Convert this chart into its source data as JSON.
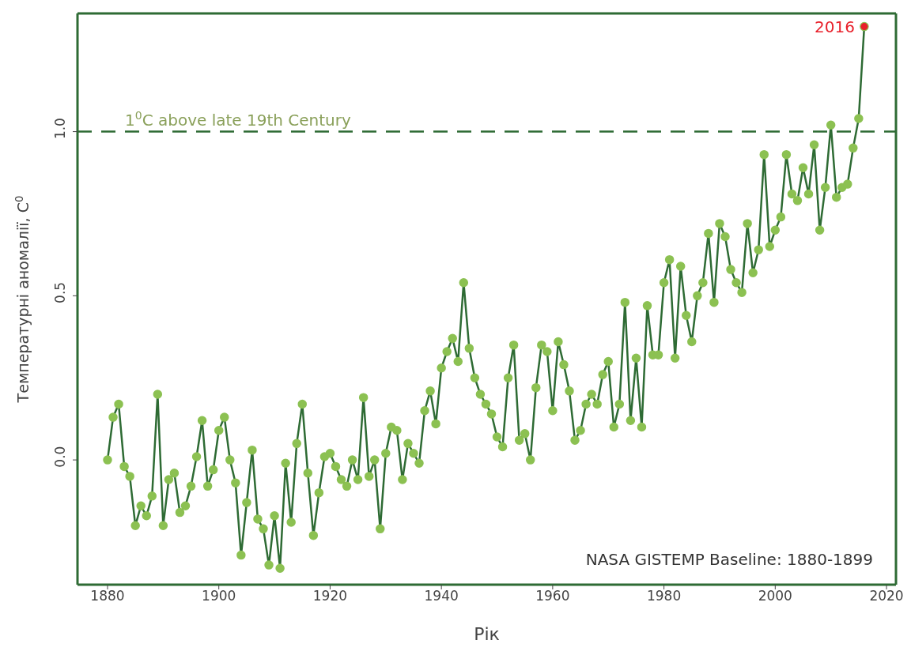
{
  "chart_data": {
    "type": "line",
    "xlabel": "Рік",
    "ylabel": "Температурні аномалії, C$^{0}$",
    "xlim": [
      1874.6,
      2021.7
    ],
    "xticks": [
      1880,
      1900,
      1920,
      1940,
      1960,
      1980,
      2000,
      2020
    ],
    "ylim": [
      -0.38,
      1.36
    ],
    "yticks": [
      {
        "value": 0,
        "label": "0.0"
      },
      {
        "value": 0.5,
        "label": "0.5"
      },
      {
        "value": 1,
        "label": "1.0"
      }
    ],
    "legend": false,
    "marker": "circle",
    "line_style": "solid",
    "ref_lines": [
      {
        "axis": "y",
        "value": 1,
        "label": "1$^{0}$C above late 19th Century",
        "color": "#2e6b34",
        "line_style": "dashed"
      }
    ],
    "annotations": [
      {
        "text": "2016",
        "x": 2016,
        "y": 1.32
      },
      "NASA GISTEMP Baseline: 1880-1899"
    ],
    "series": [
      {
        "color": "#2e6b34",
        "x": [
          1880,
          1881,
          1882,
          1883,
          1884,
          1885,
          1886,
          1887,
          1888,
          1889,
          1890,
          1891,
          1892,
          1893,
          1894,
          1895,
          1896,
          1897,
          1898,
          1899,
          1900,
          1901,
          1902,
          1903,
          1904,
          1905,
          1906,
          1907,
          1908,
          1909,
          1910,
          1911,
          1912,
          1913,
          1914,
          1915,
          1916,
          1917,
          1918,
          1919,
          1920,
          1921,
          1922,
          1923,
          1924,
          1925,
          1926,
          1927,
          1928,
          1929,
          1930,
          1931,
          1932,
          1933,
          1934,
          1935,
          1936,
          1937,
          1938,
          1939,
          1940,
          1941,
          1942,
          1943,
          1944,
          1945,
          1946,
          1947,
          1948,
          1949,
          1950,
          1951,
          1952,
          1953,
          1954,
          1955,
          1956,
          1957,
          1958,
          1959,
          1960,
          1961,
          1962,
          1963,
          1964,
          1965,
          1966,
          1967,
          1968,
          1969,
          1970,
          1971,
          1972,
          1973,
          1974,
          1975,
          1976,
          1977,
          1978,
          1979,
          1980,
          1981,
          1982,
          1983,
          1984,
          1985,
          1986,
          1987,
          1988,
          1989,
          1990,
          1991,
          1992,
          1993,
          1994,
          1995,
          1996,
          1997,
          1998,
          1999,
          2000,
          2001,
          2002,
          2003,
          2004,
          2005,
          2006,
          2007,
          2008,
          2009,
          2010,
          2011,
          2012,
          2013,
          2014,
          2015,
          2016
        ],
        "values": [
          0.0,
          0.13,
          0.17,
          -0.02,
          -0.05,
          -0.2,
          -0.14,
          -0.17,
          -0.11,
          0.2,
          -0.2,
          -0.06,
          -0.04,
          -0.16,
          -0.14,
          -0.08,
          0.01,
          0.12,
          -0.08,
          -0.03,
          0.09,
          0.13,
          0.0,
          -0.07,
          -0.29,
          -0.13,
          0.03,
          -0.18,
          -0.21,
          -0.32,
          -0.17,
          -0.33,
          -0.01,
          -0.19,
          0.05,
          0.17,
          -0.04,
          -0.23,
          -0.1,
          0.01,
          0.02,
          -0.02,
          -0.06,
          -0.08,
          0.0,
          -0.06,
          0.19,
          -0.05,
          0.0,
          -0.21,
          0.02,
          0.1,
          0.09,
          -0.06,
          0.05,
          0.02,
          -0.01,
          0.15,
          0.21,
          0.11,
          0.28,
          0.33,
          0.37,
          0.3,
          0.54,
          0.34,
          0.25,
          0.2,
          0.17,
          0.14,
          0.07,
          0.04,
          0.25,
          0.35,
          0.06,
          0.08,
          0.0,
          0.22,
          0.35,
          0.33,
          0.15,
          0.36,
          0.29,
          0.21,
          0.06,
          0.09,
          0.17,
          0.2,
          0.17,
          0.26,
          0.3,
          0.1,
          0.17,
          0.48,
          0.12,
          0.31,
          0.1,
          0.47,
          0.32,
          0.32,
          0.54,
          0.61,
          0.31,
          0.59,
          0.44,
          0.36,
          0.5,
          0.54,
          0.69,
          0.48,
          0.72,
          0.68,
          0.58,
          0.54,
          0.51,
          0.72,
          0.57,
          0.64,
          0.93,
          0.65,
          0.7,
          0.74,
          0.93,
          0.81,
          0.79,
          0.89,
          0.81,
          0.96,
          0.7,
          0.83,
          1.02,
          0.8,
          0.83,
          0.84,
          0.95,
          1.04,
          1.32
        ]
      },
      {
        "type": "scatter",
        "color": "#e8202a",
        "x": [
          2016
        ],
        "values": [
          1.32
        ]
      }
    ]
  }
}
